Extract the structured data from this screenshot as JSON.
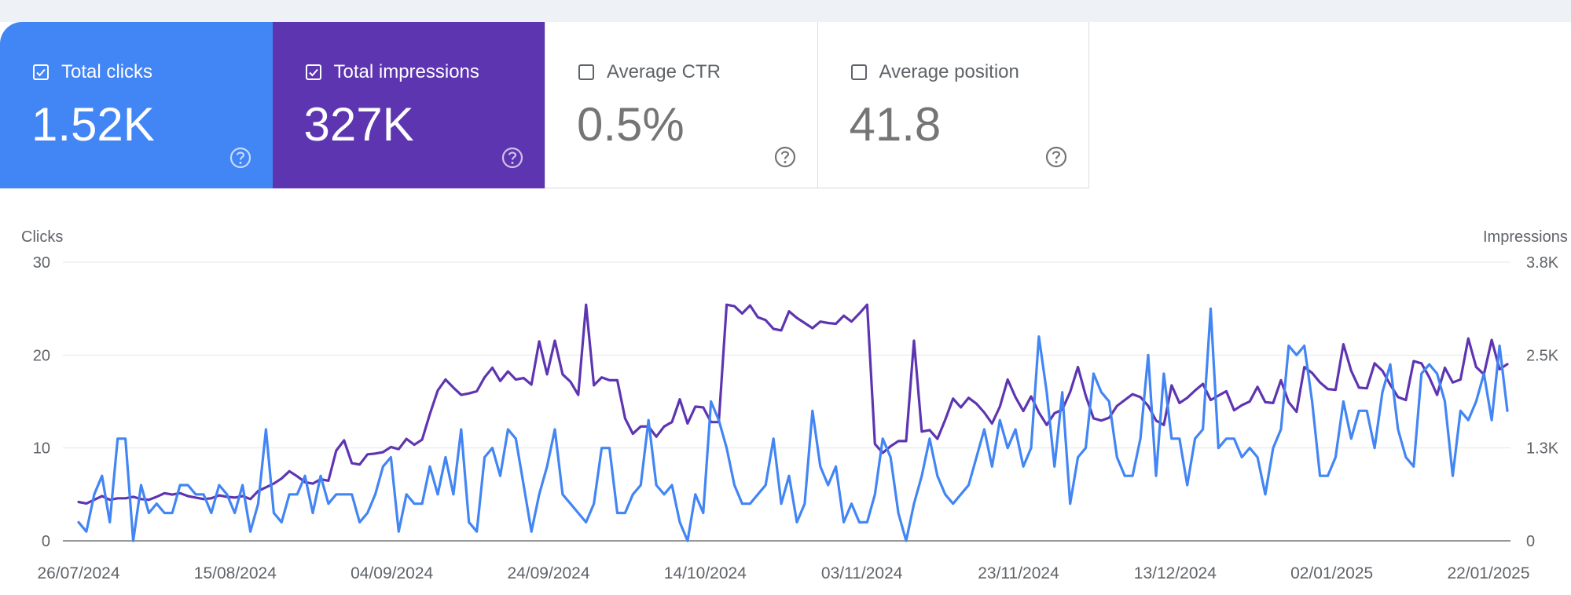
{
  "cards": [
    {
      "label": "Total clicks",
      "value": "1.52K",
      "checked": true,
      "color": "#4285f4",
      "help_icon": "help-circle-icon"
    },
    {
      "label": "Total impressions",
      "value": "327K",
      "checked": true,
      "color": "#5e35b1",
      "help_icon": "help-circle-icon"
    },
    {
      "label": "Average CTR",
      "value": "0.5%",
      "checked": false,
      "help_icon": "help-circle-icon"
    },
    {
      "label": "Average position",
      "value": "41.8",
      "checked": false,
      "help_icon": "help-circle-icon"
    }
  ],
  "chart_data": {
    "type": "line",
    "left_axis": {
      "label": "Clicks",
      "ticks": [
        "0",
        "10",
        "20",
        "30"
      ],
      "ylim": [
        0,
        30
      ]
    },
    "right_axis": {
      "label": "Impressions",
      "ticks": [
        "0",
        "1.3K",
        "2.5K",
        "3.8K"
      ],
      "ylim": [
        0,
        3800
      ]
    },
    "x_tick_labels": [
      "26/07/2024",
      "15/08/2024",
      "04/09/2024",
      "24/09/2024",
      "14/10/2024",
      "03/11/2024",
      "23/11/2024",
      "13/12/2024",
      "02/01/2025",
      "22/01/2025"
    ],
    "x_range": [
      "26/07/2024",
      "22/01/2025"
    ],
    "grid": true,
    "series": [
      {
        "name": "Clicks",
        "axis": "left",
        "color": "#4285f4",
        "values": [
          2,
          1,
          5,
          7,
          2,
          11,
          11,
          0,
          6,
          3,
          4,
          3,
          3,
          6,
          6,
          5,
          5,
          3,
          6,
          5,
          3,
          6,
          1,
          4,
          12,
          3,
          2,
          5,
          5,
          7,
          3,
          7,
          4,
          5,
          5,
          5,
          2,
          3,
          5,
          8,
          9,
          1,
          5,
          4,
          4,
          8,
          5,
          9,
          5,
          12,
          2,
          1,
          9,
          10,
          7,
          12,
          11,
          6,
          1,
          5,
          8,
          12,
          5,
          4,
          3,
          2,
          4,
          10,
          10,
          3,
          3,
          5,
          6,
          13,
          6,
          5,
          6,
          2,
          0,
          5,
          3,
          15,
          13,
          10,
          6,
          4,
          4,
          5,
          6,
          11,
          4,
          7,
          2,
          4,
          14,
          8,
          6,
          8,
          2,
          4,
          2,
          2,
          5,
          11,
          9,
          3,
          0,
          4,
          7,
          11,
          7,
          5,
          4,
          5,
          6,
          9,
          12,
          8,
          13,
          10,
          12,
          8,
          10,
          22,
          16,
          8,
          16,
          4,
          9,
          10,
          18,
          16,
          15,
          9,
          7,
          7,
          11,
          20,
          7,
          18,
          11,
          11,
          6,
          11,
          12,
          25,
          10,
          11,
          11,
          9,
          10,
          9,
          5,
          10,
          12,
          21,
          20,
          21,
          15,
          7,
          7,
          9,
          15,
          11,
          14,
          14,
          10,
          16,
          19,
          12,
          9,
          8,
          18,
          19,
          18,
          15,
          7,
          14,
          13,
          15,
          18,
          13,
          21,
          14
        ]
      },
      {
        "name": "Impressions",
        "axis": "right",
        "color": "#5e35b1",
        "values": [
          530,
          510,
          560,
          610,
          560,
          580,
          580,
          600,
          570,
          560,
          600,
          650,
          630,
          650,
          610,
          590,
          570,
          580,
          620,
          600,
          590,
          610,
          570,
          680,
          730,
          780,
          850,
          950,
          880,
          800,
          780,
          840,
          820,
          1230,
          1370,
          1060,
          1040,
          1180,
          1190,
          1210,
          1280,
          1250,
          1390,
          1310,
          1380,
          1730,
          2050,
          2200,
          2090,
          1990,
          2010,
          2040,
          2230,
          2360,
          2180,
          2310,
          2200,
          2220,
          2130,
          2720,
          2270,
          2730,
          2270,
          2170,
          1990,
          3220,
          2120,
          2230,
          2190,
          2190,
          1670,
          1460,
          1560,
          1560,
          1420,
          1560,
          1620,
          1930,
          1600,
          1830,
          1820,
          1620,
          1620,
          3220,
          3200,
          3100,
          3210,
          3050,
          3010,
          2890,
          2870,
          3130,
          3040,
          2970,
          2900,
          2990,
          2970,
          2960,
          3070,
          2990,
          3100,
          3220,
          1320,
          1200,
          1290,
          1360,
          1360,
          2730,
          1490,
          1510,
          1390,
          1650,
          1940,
          1820,
          1950,
          1870,
          1750,
          1600,
          1830,
          2200,
          1960,
          1770,
          1970,
          1750,
          1580,
          1740,
          1790,
          2030,
          2370,
          1980,
          1670,
          1640,
          1680,
          1840,
          1920,
          2000,
          1960,
          1840,
          1640,
          1580,
          2120,
          1880,
          1950,
          2050,
          2140,
          1920,
          1980,
          2040,
          1780,
          1850,
          1900,
          2100,
          1890,
          1880,
          2190,
          1890,
          1760,
          2370,
          2290,
          2160,
          2070,
          2060,
          2680,
          2320,
          2090,
          2080,
          2420,
          2320,
          2130,
          1960,
          1920,
          2450,
          2420,
          2230,
          1990,
          2360,
          2160,
          2200,
          2760,
          2370,
          2270,
          2740,
          2340,
          2410
        ]
      }
    ]
  }
}
